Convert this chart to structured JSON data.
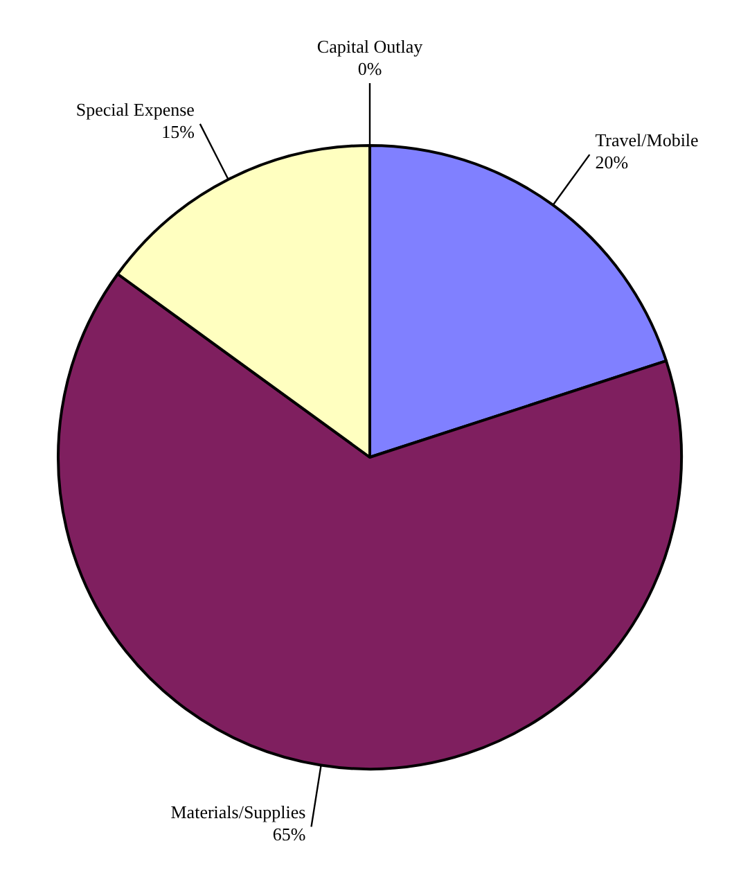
{
  "chart_data": {
    "type": "pie",
    "categories": [
      "Travel/Mobile",
      "Materials/Supplies",
      "Special Expense",
      "Capital Outlay"
    ],
    "values": [
      20,
      65,
      15,
      0
    ],
    "value_labels": [
      "20%",
      "65%",
      "15%",
      "0%"
    ],
    "colors": [
      "#8080ff",
      "#7f1f5f",
      "#ffffc0",
      "#000000"
    ]
  }
}
